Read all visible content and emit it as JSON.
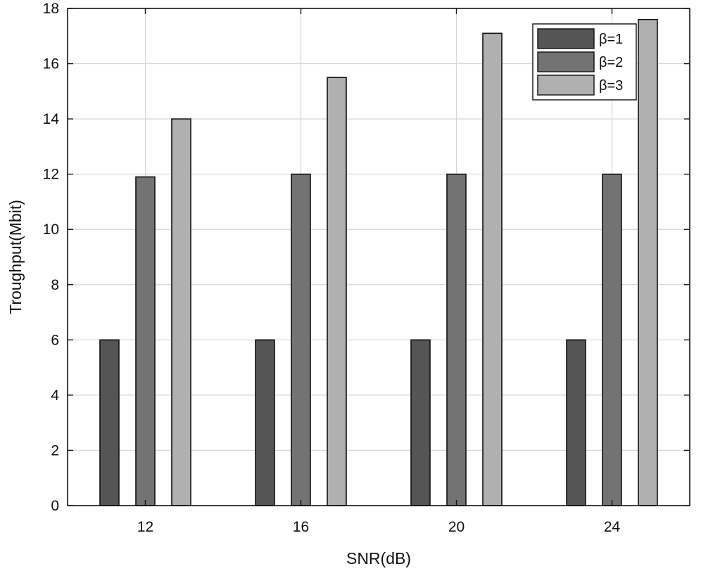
{
  "chart_data": {
    "type": "bar",
    "title": "",
    "xlabel": "SNR(dB)",
    "ylabel": "Troughput(Mbit)",
    "categories": [
      "12",
      "16",
      "20",
      "24"
    ],
    "series": [
      {
        "name": "β=1",
        "color": "#555555",
        "values": [
          6,
          6,
          6,
          6
        ]
      },
      {
        "name": "β=2",
        "color": "#737373",
        "values": [
          11.9,
          12,
          12,
          12
        ]
      },
      {
        "name": "β=3",
        "color": "#b0b0b0",
        "values": [
          14,
          15.5,
          17.1,
          17.6
        ]
      }
    ],
    "ylim": [
      0,
      18
    ],
    "yticks": [
      0,
      2,
      4,
      6,
      8,
      10,
      12,
      14,
      16,
      18
    ],
    "grid": true,
    "legend_position": "top-right"
  }
}
